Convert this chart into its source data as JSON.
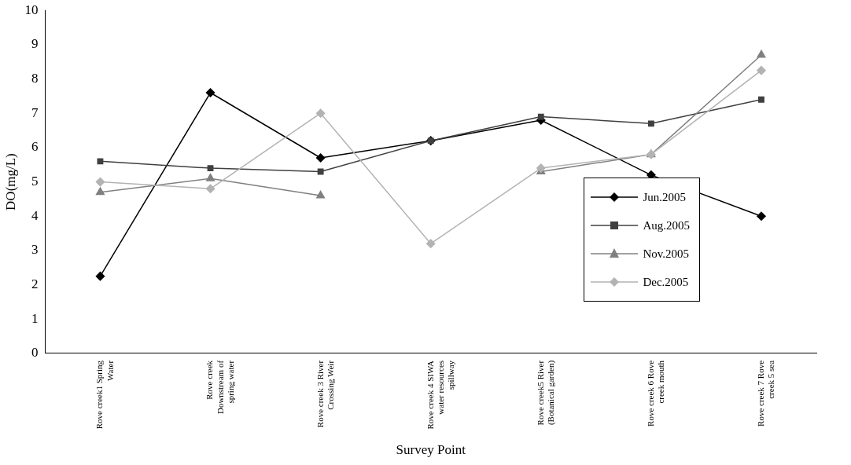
{
  "chart_data": {
    "type": "line",
    "xlabel": "Survey Point",
    "ylabel": "DO(mg/L)",
    "categories": [
      "Rove creek1 Spring Water",
      "Rove creek Downstream of spring water",
      "Rove creek 3 River Crossing Weir",
      "Rove creek 4 SIWA water resources spillway",
      "Rove creek5 River (Botanical garden)",
      "Rove creek 6 Rove creek mouth",
      "Rove creek 7 Rove creek 5 sea"
    ],
    "series": [
      {
        "name": "Jun.2005",
        "color": "#000000",
        "marker": "diamond",
        "values": [
          2.25,
          7.6,
          5.7,
          6.2,
          6.8,
          5.2,
          4.0
        ]
      },
      {
        "name": "Aug.2005",
        "color": "#404040",
        "marker": "square",
        "values": [
          5.6,
          5.4,
          5.3,
          6.2,
          6.9,
          6.7,
          7.4
        ]
      },
      {
        "name": "Nov.2005",
        "color": "#808080",
        "marker": "triangle",
        "values": [
          4.7,
          5.1,
          4.6,
          null,
          5.3,
          5.8,
          8.7
        ]
      },
      {
        "name": "Dec.2005",
        "color": "#b3b3b3",
        "marker": "diamond",
        "values": [
          5.0,
          4.8,
          7.0,
          3.2,
          5.4,
          5.8,
          8.25
        ]
      }
    ],
    "ylim": [
      0,
      10
    ],
    "yticks": [
      0,
      1,
      2,
      3,
      4,
      5,
      6,
      7,
      8,
      9,
      10
    ],
    "grid": false,
    "legend": "right",
    "line_style": "solid"
  }
}
